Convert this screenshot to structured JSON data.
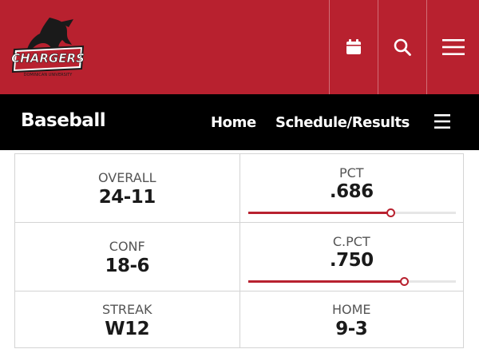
{
  "header": {
    "logo_text": "CHARGERS",
    "logo_subtext": "DOMINICAN UNIVERSITY",
    "brand_color": "#b8212f",
    "icons": [
      "calendar-icon",
      "search-icon",
      "hamburger-menu-icon"
    ]
  },
  "sport_nav": {
    "title": "Baseball",
    "links": [
      "Home",
      "Schedule/Results"
    ],
    "menu_icon": "hamburger-menu-icon"
  },
  "stats": {
    "overall": {
      "label": "OVERALL",
      "value": "24-11"
    },
    "pct": {
      "label": "PCT",
      "value": ".686",
      "fraction": 0.686
    },
    "conf": {
      "label": "CONF",
      "value": "18-6"
    },
    "cpct": {
      "label": "C.PCT",
      "value": ".750",
      "fraction": 0.75
    },
    "streak": {
      "label": "STREAK",
      "value": "W12"
    },
    "home": {
      "label": "HOME",
      "value": "9-3"
    }
  }
}
